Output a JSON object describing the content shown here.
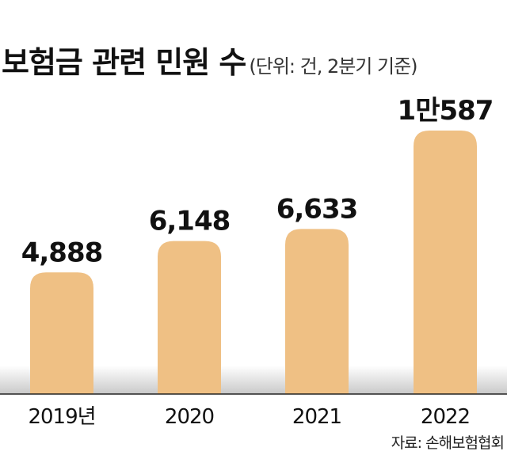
{
  "chart_data": {
    "type": "bar",
    "title": "보험금 관련 민원 수",
    "subtitle": "(단위: 건, 2분기 기준)",
    "categories": [
      "2019년",
      "2020",
      "2021",
      "2022"
    ],
    "values": [
      4888,
      6148,
      6633,
      10587
    ],
    "data_labels": [
      "4,888",
      "6,148",
      "6,633",
      "1만587"
    ],
    "ylim": [
      0,
      10587
    ],
    "grid": false,
    "bar_color": "#EFC084",
    "source": "자료: 손해보험협회"
  }
}
